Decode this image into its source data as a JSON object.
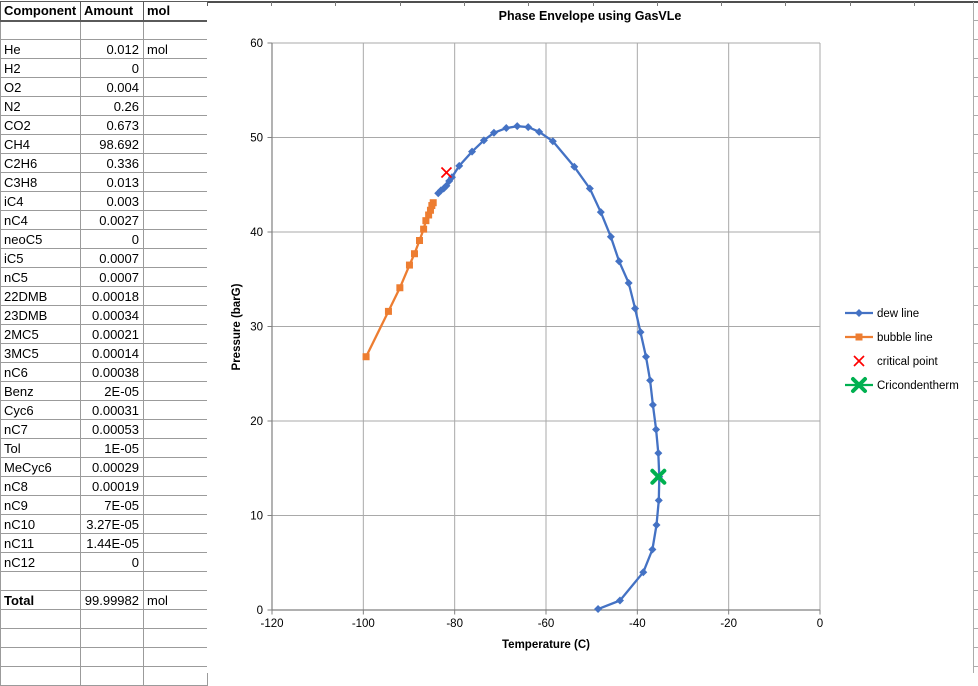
{
  "sheet": {
    "columns": [
      "Component",
      "Amount",
      "mol"
    ],
    "rows": [
      {
        "component": "",
        "amount": "",
        "unit": ""
      },
      {
        "component": "He",
        "amount": "0.012",
        "unit": "mol"
      },
      {
        "component": "H2",
        "amount": "0",
        "unit": ""
      },
      {
        "component": "O2",
        "amount": "0.004",
        "unit": ""
      },
      {
        "component": "N2",
        "amount": "0.26",
        "unit": ""
      },
      {
        "component": "CO2",
        "amount": "0.673",
        "unit": ""
      },
      {
        "component": "CH4",
        "amount": "98.692",
        "unit": ""
      },
      {
        "component": "C2H6",
        "amount": "0.336",
        "unit": ""
      },
      {
        "component": "C3H8",
        "amount": "0.013",
        "unit": ""
      },
      {
        "component": "iC4",
        "amount": "0.003",
        "unit": ""
      },
      {
        "component": "nC4",
        "amount": "0.0027",
        "unit": ""
      },
      {
        "component": "neoC5",
        "amount": "0",
        "unit": ""
      },
      {
        "component": "iC5",
        "amount": "0.0007",
        "unit": ""
      },
      {
        "component": "nC5",
        "amount": "0.0007",
        "unit": ""
      },
      {
        "component": "22DMB",
        "amount": "0.00018",
        "unit": ""
      },
      {
        "component": "23DMB",
        "amount": "0.00034",
        "unit": ""
      },
      {
        "component": "2MC5",
        "amount": "0.00021",
        "unit": ""
      },
      {
        "component": "3MC5",
        "amount": "0.00014",
        "unit": ""
      },
      {
        "component": "nC6",
        "amount": "0.00038",
        "unit": ""
      },
      {
        "component": "Benz",
        "amount": "2E-05",
        "unit": ""
      },
      {
        "component": "Cyc6",
        "amount": "0.00031",
        "unit": ""
      },
      {
        "component": "nC7",
        "amount": "0.00053",
        "unit": ""
      },
      {
        "component": "Tol",
        "amount": "1E-05",
        "unit": ""
      },
      {
        "component": "MeCyc6",
        "amount": "0.00029",
        "unit": ""
      },
      {
        "component": "nC8",
        "amount": "0.00019",
        "unit": ""
      },
      {
        "component": "nC9",
        "amount": "7E-05",
        "unit": ""
      },
      {
        "component": "nC10",
        "amount": "3.27E-05",
        "unit": ""
      },
      {
        "component": "nC11",
        "amount": "1.44E-05",
        "unit": ""
      },
      {
        "component": "nC12",
        "amount": "0",
        "unit": ""
      },
      {
        "component": "",
        "amount": "",
        "unit": ""
      },
      {
        "component": "Total",
        "amount": "99.99982",
        "unit": "mol",
        "bold": true
      },
      {
        "component": "",
        "amount": "",
        "unit": ""
      },
      {
        "component": "",
        "amount": "",
        "unit": ""
      },
      {
        "component": "",
        "amount": "",
        "unit": ""
      },
      {
        "component": "",
        "amount": "",
        "unit": ""
      }
    ]
  },
  "chart_data": {
    "type": "scatter",
    "title": "Phase Envelope using GasVLe",
    "xlabel": "Temperature (C)",
    "ylabel": "Pressure (barG)",
    "xlim": [
      -120,
      0
    ],
    "xstep": 20,
    "ylim": [
      0,
      60
    ],
    "ystep": 10,
    "grid": true,
    "grid_color": "#a9a9a9",
    "axis_color": "#808080",
    "legend_position": "right",
    "series": [
      {
        "name": "dew line",
        "color": "#4472C4",
        "marker": "diamond",
        "line": true,
        "points": [
          [
            -48.6,
            0.1
          ],
          [
            -43.8,
            1.0
          ],
          [
            -38.7,
            4.0
          ],
          [
            -36.7,
            6.4
          ],
          [
            -35.8,
            9.0
          ],
          [
            -35.3,
            11.6
          ],
          [
            -35.2,
            14.1
          ],
          [
            -35.4,
            16.6
          ],
          [
            -35.9,
            19.1
          ],
          [
            -36.6,
            21.7
          ],
          [
            -37.2,
            24.3
          ],
          [
            -38.1,
            26.8
          ],
          [
            -39.3,
            29.4
          ],
          [
            -40.5,
            31.9
          ],
          [
            -41.9,
            34.6
          ],
          [
            -44.0,
            36.9
          ],
          [
            -45.8,
            39.5
          ],
          [
            -48.0,
            42.1
          ],
          [
            -50.4,
            44.6
          ],
          [
            -53.8,
            46.9
          ],
          [
            -58.5,
            49.6
          ],
          [
            -61.5,
            50.6
          ],
          [
            -63.9,
            51.1
          ],
          [
            -66.3,
            51.2
          ],
          [
            -68.7,
            51.0
          ],
          [
            -71.4,
            50.5
          ],
          [
            -73.6,
            49.7
          ],
          [
            -76.2,
            48.5
          ],
          [
            -79.0,
            47.0
          ],
          [
            -80.6,
            45.8
          ],
          [
            -81.2,
            45.4
          ],
          [
            -81.8,
            44.9
          ],
          [
            -82.4,
            44.6
          ],
          [
            -83.0,
            44.4
          ],
          [
            -83.6,
            44.1
          ]
        ]
      },
      {
        "name": "bubble line",
        "color": "#ED7D31",
        "marker": "square",
        "line": true,
        "points": [
          [
            -99.4,
            26.8
          ],
          [
            -94.5,
            31.6
          ],
          [
            -92.0,
            34.1
          ],
          [
            -89.9,
            36.5
          ],
          [
            -88.8,
            37.7
          ],
          [
            -87.7,
            39.1
          ],
          [
            -86.8,
            40.3
          ],
          [
            -86.3,
            41.2
          ],
          [
            -85.7,
            41.8
          ],
          [
            -85.3,
            42.3
          ],
          [
            -85.0,
            42.8
          ],
          [
            -84.7,
            43.1
          ]
        ]
      },
      {
        "name": "critical point",
        "color": "#FF0000",
        "marker": "x-thin",
        "line": false,
        "points": [
          [
            -81.8,
            46.3
          ]
        ]
      },
      {
        "name": "Cricondentherm",
        "color": "#00B050",
        "marker": "x-bold",
        "line": true,
        "points": [
          [
            -35.4,
            14.1
          ]
        ]
      }
    ]
  }
}
